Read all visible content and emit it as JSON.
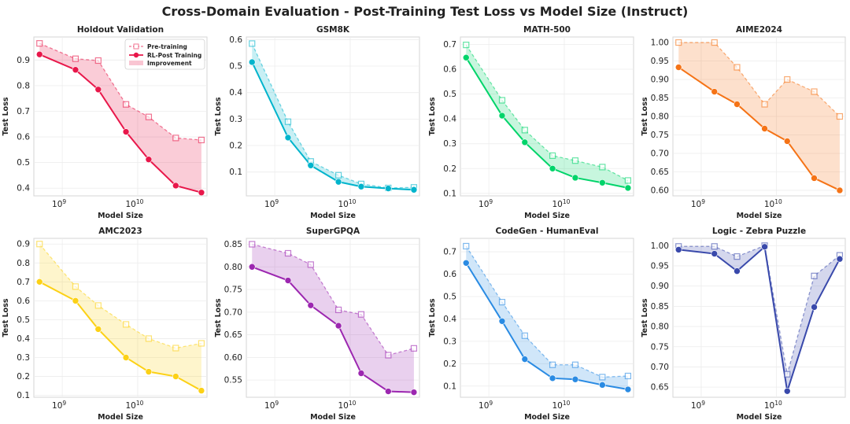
{
  "figure_title": "Cross-Domain Evaluation - Post-Training Test Loss vs Model Size (Instruct)",
  "legend_labels": {
    "pre": "Pre-training",
    "post": "RL-Post Training",
    "improvement": "Improvement"
  },
  "chart_data": [
    {
      "type": "line",
      "title": "Holdout Validation",
      "xlabel": "Model Size",
      "ylabel": "Test Loss",
      "xscale": "log",
      "x": [
        500000000.0,
        1500000000.0,
        3000000000.0,
        7000000000.0,
        14000000000.0,
        32000000000.0,
        70000000000.0
      ],
      "ylim": [
        0.37,
        0.99
      ],
      "yticks": [
        0.4,
        0.5,
        0.6,
        0.7,
        0.8,
        0.9
      ],
      "ytick_labels": [
        "0.4",
        "0.5",
        "0.6",
        "0.7",
        "0.8",
        "0.9"
      ],
      "color": "#e8174a",
      "legend": "top-right",
      "series": [
        {
          "name": "Pre-training",
          "values": [
            0.965,
            0.905,
            0.898,
            0.727,
            0.678,
            0.596,
            0.588
          ]
        },
        {
          "name": "RL-Post Training",
          "values": [
            0.922,
            0.862,
            0.785,
            0.62,
            0.512,
            0.41,
            0.383
          ]
        }
      ]
    },
    {
      "type": "line",
      "title": "GSM8K",
      "xlabel": "Model Size",
      "ylabel": "Test Loss",
      "xscale": "log",
      "x": [
        500000000.0,
        1500000000.0,
        3000000000.0,
        7000000000.0,
        14000000000.0,
        32000000000.0,
        70000000000.0
      ],
      "ylim": [
        0.01,
        0.61
      ],
      "yticks": [
        0.1,
        0.2,
        0.3,
        0.4,
        0.5,
        0.6
      ],
      "ytick_labels": [
        "0.1",
        "0.2",
        "0.3",
        "0.4",
        "0.5",
        "0.6"
      ],
      "color": "#00b4cc",
      "series": [
        {
          "name": "Pre-training",
          "values": [
            0.585,
            0.29,
            0.14,
            0.088,
            0.055,
            0.04,
            0.042
          ]
        },
        {
          "name": "RL-Post Training",
          "values": [
            0.515,
            0.23,
            0.125,
            0.063,
            0.045,
            0.038,
            0.033
          ]
        }
      ]
    },
    {
      "type": "line",
      "title": "MATH-500",
      "xlabel": "Model Size",
      "ylabel": "Test Loss",
      "xscale": "log",
      "x": [
        500000000.0,
        1500000000.0,
        3000000000.0,
        7000000000.0,
        14000000000.0,
        32000000000.0,
        70000000000.0
      ],
      "ylim": [
        0.09,
        0.73
      ],
      "yticks": [
        0.1,
        0.2,
        0.3,
        0.4,
        0.5,
        0.6,
        0.7
      ],
      "ytick_labels": [
        "0.1",
        "0.2",
        "0.3",
        "0.4",
        "0.5",
        "0.6",
        "0.7"
      ],
      "color": "#00d46a",
      "series": [
        {
          "name": "Pre-training",
          "values": [
            0.698,
            0.475,
            0.355,
            0.252,
            0.232,
            0.206,
            0.152
          ]
        },
        {
          "name": "RL-Post Training",
          "values": [
            0.647,
            0.413,
            0.306,
            0.2,
            0.163,
            0.143,
            0.122
          ]
        }
      ]
    },
    {
      "type": "line",
      "title": "AIME2024",
      "xlabel": "Model Size",
      "ylabel": "Test Loss",
      "xscale": "log",
      "x": [
        500000000.0,
        1500000000.0,
        3000000000.0,
        7000000000.0,
        14000000000.0,
        32000000000.0,
        70000000000.0
      ],
      "ylim": [
        0.585,
        1.015
      ],
      "yticks": [
        0.6,
        0.65,
        0.7,
        0.75,
        0.8,
        0.85,
        0.9,
        0.95,
        1.0
      ],
      "ytick_labels": [
        "0.60",
        "0.65",
        "0.70",
        "0.75",
        "0.80",
        "0.85",
        "0.90",
        "0.95",
        "1.00"
      ],
      "color": "#f57316",
      "series": [
        {
          "name": "Pre-training",
          "values": [
            1.0,
            1.0,
            0.933,
            0.833,
            0.9,
            0.867,
            0.8
          ]
        },
        {
          "name": "RL-Post Training",
          "values": [
            0.933,
            0.867,
            0.833,
            0.767,
            0.733,
            0.633,
            0.6
          ]
        }
      ]
    },
    {
      "type": "line",
      "title": "AMC2023",
      "xlabel": "Model Size",
      "ylabel": "Test Loss",
      "xscale": "log",
      "x": [
        500000000.0,
        1500000000.0,
        3000000000.0,
        7000000000.0,
        14000000000.0,
        32000000000.0,
        70000000000.0
      ],
      "ylim": [
        0.09,
        0.93
      ],
      "yticks": [
        0.1,
        0.2,
        0.3,
        0.4,
        0.5,
        0.6,
        0.7,
        0.8,
        0.9
      ],
      "ytick_labels": [
        "0.1",
        "0.2",
        "0.3",
        "0.4",
        "0.5",
        "0.6",
        "0.7",
        "0.8",
        "0.9"
      ],
      "color": "#fcd116",
      "series": [
        {
          "name": "Pre-training",
          "values": [
            0.9,
            0.675,
            0.575,
            0.475,
            0.4,
            0.35,
            0.375
          ]
        },
        {
          "name": "RL-Post Training",
          "values": [
            0.7,
            0.6,
            0.45,
            0.3,
            0.225,
            0.2,
            0.125
          ]
        }
      ]
    },
    {
      "type": "line",
      "title": "SuperGPQA",
      "xlabel": "Model Size",
      "ylabel": "Test Loss",
      "xscale": "log",
      "x": [
        500000000.0,
        1500000000.0,
        3000000000.0,
        7000000000.0,
        14000000000.0,
        32000000000.0,
        70000000000.0
      ],
      "ylim": [
        0.512,
        0.863
      ],
      "yticks": [
        0.55,
        0.6,
        0.65,
        0.7,
        0.75,
        0.8,
        0.85
      ],
      "ytick_labels": [
        "0.55",
        "0.60",
        "0.65",
        "0.70",
        "0.75",
        "0.80",
        "0.85"
      ],
      "color": "#9c27b0",
      "series": [
        {
          "name": "Pre-training",
          "values": [
            0.85,
            0.83,
            0.805,
            0.705,
            0.695,
            0.605,
            0.62
          ]
        },
        {
          "name": "RL-Post Training",
          "values": [
            0.8,
            0.77,
            0.715,
            0.67,
            0.565,
            0.525,
            0.523
          ]
        }
      ]
    },
    {
      "type": "line",
      "title": "CodeGen - HumanEval",
      "xlabel": "Model Size",
      "ylabel": "Test Loss",
      "xscale": "log",
      "x": [
        500000000.0,
        1500000000.0,
        3000000000.0,
        7000000000.0,
        14000000000.0,
        32000000000.0,
        70000000000.0
      ],
      "ylim": [
        0.05,
        0.76
      ],
      "yticks": [
        0.1,
        0.2,
        0.3,
        0.4,
        0.5,
        0.6,
        0.7
      ],
      "ytick_labels": [
        "0.1",
        "0.2",
        "0.3",
        "0.4",
        "0.5",
        "0.6",
        "0.7"
      ],
      "color": "#2a8be3",
      "series": [
        {
          "name": "Pre-training",
          "values": [
            0.725,
            0.475,
            0.325,
            0.195,
            0.195,
            0.14,
            0.145
          ]
        },
        {
          "name": "RL-Post Training",
          "values": [
            0.65,
            0.39,
            0.22,
            0.135,
            0.13,
            0.105,
            0.085
          ]
        }
      ]
    },
    {
      "type": "line",
      "title": "Logic - Zebra Puzzle",
      "xlabel": "Model Size",
      "ylabel": "Test Loss",
      "xscale": "log",
      "x": [
        500000000.0,
        1500000000.0,
        3000000000.0,
        7000000000.0,
        14000000000.0,
        32000000000.0,
        70000000000.0
      ],
      "ylim": [
        0.625,
        1.018
      ],
      "yticks": [
        0.65,
        0.7,
        0.75,
        0.8,
        0.85,
        0.9,
        0.95,
        1.0
      ],
      "ytick_labels": [
        "0.65",
        "0.70",
        "0.75",
        "0.80",
        "0.85",
        "0.90",
        "0.95",
        "1.00"
      ],
      "color": "#3949ab",
      "series": [
        {
          "name": "Pre-training",
          "values": [
            0.998,
            0.998,
            0.973,
            1.0,
            0.682,
            0.925,
            0.976
          ]
        },
        {
          "name": "RL-Post Training",
          "values": [
            0.99,
            0.98,
            0.937,
            0.997,
            0.64,
            0.848,
            0.967
          ]
        }
      ]
    }
  ],
  "x_ticks": [
    {
      "base": "10",
      "exp": "9",
      "value": 1000000000.0
    },
    {
      "base": "10",
      "exp": "10",
      "value": 10000000000.0
    }
  ]
}
